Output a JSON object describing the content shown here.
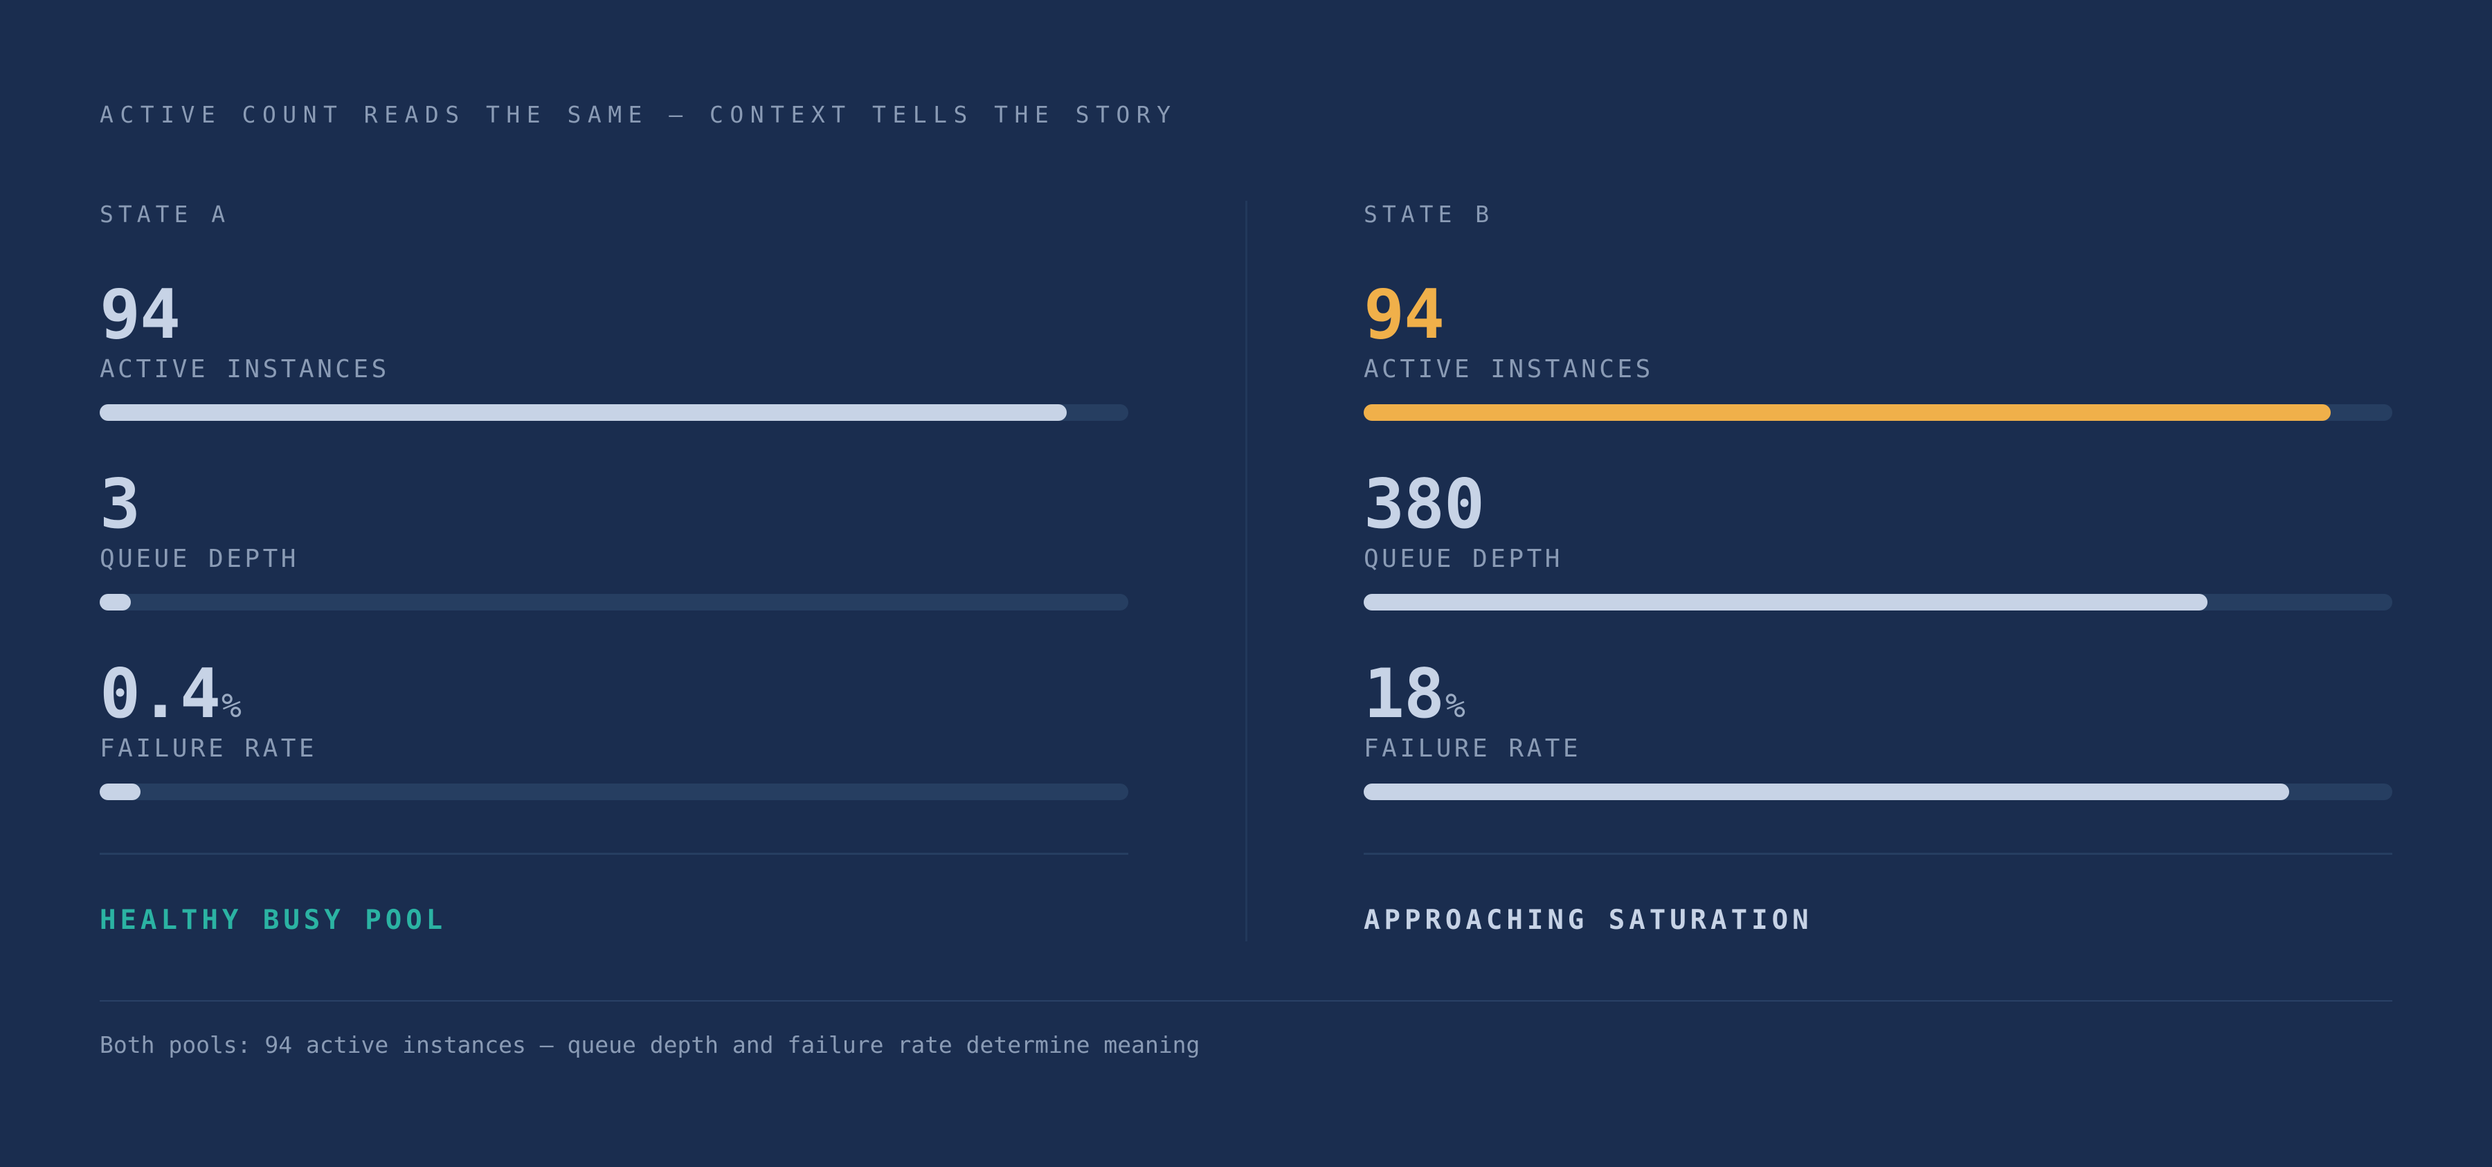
{
  "header": {
    "title": "ACTIVE COUNT READS THE SAME — CONTEXT TELLS THE STORY"
  },
  "colors": {
    "background": "#1a2d4f",
    "neutral_value": "#c7d3e6",
    "accent_amber": "#f0b04a",
    "healthy_teal": "#2bb3a3",
    "muted_text": "#8a9bb5",
    "track": "#263e61"
  },
  "state_a": {
    "label": "STATE A",
    "metrics": [
      {
        "value": "94",
        "unit": "",
        "label": "ACTIVE INSTANCES",
        "fill": 0.94,
        "accent": false
      },
      {
        "value": "3",
        "unit": "",
        "label": "QUEUE DEPTH",
        "fill": 0.03,
        "accent": false
      },
      {
        "value": "0.4",
        "unit": "%",
        "label": "FAILURE RATE",
        "fill": 0.04,
        "accent": false
      }
    ],
    "verdict": "HEALTHY BUSY POOL",
    "verdict_color": "#2bb3a3"
  },
  "state_b": {
    "label": "STATE B",
    "metrics": [
      {
        "value": "94",
        "unit": "",
        "label": "ACTIVE INSTANCES",
        "fill": 0.94,
        "accent": true
      },
      {
        "value": "380",
        "unit": "",
        "label": "QUEUE DEPTH",
        "fill": 0.82,
        "accent": false
      },
      {
        "value": "18",
        "unit": "%",
        "label": "FAILURE RATE",
        "fill": 0.9,
        "accent": false
      }
    ],
    "verdict": "APPROACHING SATURATION",
    "verdict_color": "#c7d3e6"
  },
  "footer": {
    "note": "Both pools: 94 active instances — queue depth and failure rate determine meaning"
  }
}
